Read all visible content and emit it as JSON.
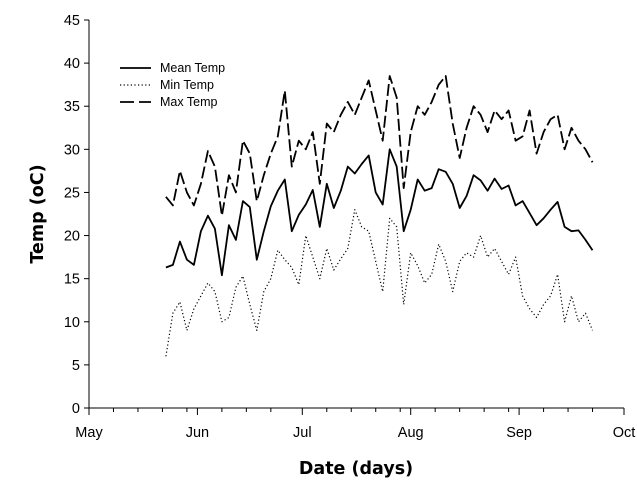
{
  "chart_data": {
    "type": "line",
    "xlabel": "Date (days)",
    "ylabel": "Temp (oC)",
    "xlim": [
      "2013-05-01",
      "2013-10-01"
    ],
    "x_ticks": [
      "May",
      "Jun",
      "Jul",
      "Aug",
      "Sep",
      "Oct"
    ],
    "ylim": [
      0,
      45
    ],
    "y_ticks": [
      0,
      5,
      10,
      15,
      20,
      25,
      30,
      35,
      40,
      45
    ],
    "grid": false,
    "legend_position": "top-left",
    "x": [
      "2013-05-23",
      "2013-05-25",
      "2013-05-27",
      "2013-05-29",
      "2013-05-31",
      "2013-06-02",
      "2013-06-04",
      "2013-06-06",
      "2013-06-08",
      "2013-06-10",
      "2013-06-12",
      "2013-06-14",
      "2013-06-16",
      "2013-06-18",
      "2013-06-20",
      "2013-06-22",
      "2013-06-24",
      "2013-06-26",
      "2013-06-28",
      "2013-06-30",
      "2013-07-02",
      "2013-07-04",
      "2013-07-06",
      "2013-07-08",
      "2013-07-10",
      "2013-07-12",
      "2013-07-14",
      "2013-07-16",
      "2013-07-18",
      "2013-07-20",
      "2013-07-22",
      "2013-07-24",
      "2013-07-26",
      "2013-07-28",
      "2013-07-30",
      "2013-08-01",
      "2013-08-03",
      "2013-08-05",
      "2013-08-07",
      "2013-08-09",
      "2013-08-11",
      "2013-08-13",
      "2013-08-15",
      "2013-08-17",
      "2013-08-19",
      "2013-08-21",
      "2013-08-23",
      "2013-08-25",
      "2013-08-27",
      "2013-08-29",
      "2013-08-31",
      "2013-09-02",
      "2013-09-04",
      "2013-09-06",
      "2013-09-08",
      "2013-09-10",
      "2013-09-12",
      "2013-09-14",
      "2013-09-16",
      "2013-09-18",
      "2013-09-20",
      "2013-09-22"
    ],
    "series": [
      {
        "name": "Mean Temp",
        "style": "solid",
        "values": [
          16.3,
          16.6,
          19.3,
          17.2,
          16.6,
          20.5,
          22.3,
          20.8,
          15.4,
          21.2,
          19.5,
          24.0,
          23.3,
          17.2,
          20.5,
          23.4,
          25.2,
          26.5,
          20.5,
          22.4,
          23.6,
          25.3,
          21.0,
          26.0,
          23.2,
          25.2,
          28.0,
          27.2,
          28.3,
          29.3,
          25.0,
          23.6,
          30.0,
          28.0,
          20.5,
          23.0,
          26.5,
          25.2,
          25.5,
          27.7,
          27.4,
          26.0,
          23.2,
          24.6,
          27.0,
          26.4,
          25.2,
          26.6,
          25.4,
          25.8,
          23.5,
          24.0,
          22.6,
          21.2,
          22.0,
          23.0,
          23.9,
          21.0,
          20.5,
          20.6,
          19.5,
          18.3
        ]
      },
      {
        "name": "Min Temp",
        "style": "dotted",
        "values": [
          6.0,
          11.0,
          12.3,
          9.0,
          11.5,
          13.0,
          14.5,
          13.5,
          10.0,
          10.5,
          14.0,
          15.3,
          12.0,
          9.0,
          13.5,
          15.0,
          18.3,
          17.2,
          16.3,
          14.3,
          20.0,
          17.5,
          15.0,
          18.5,
          16.0,
          17.3,
          18.5,
          23.0,
          21.0,
          20.5,
          17.0,
          13.5,
          22.0,
          21.0,
          12.0,
          18.0,
          16.5,
          14.5,
          15.5,
          19.0,
          17.0,
          13.5,
          17.0,
          18.0,
          17.5,
          20.0,
          17.5,
          18.5,
          17.0,
          15.5,
          17.5,
          13.0,
          11.5,
          10.5,
          12.0,
          13.0,
          15.5,
          10.0,
          13.0,
          10.0,
          11.0,
          9.0
        ]
      },
      {
        "name": "Max Temp",
        "style": "long-dash",
        "values": [
          24.5,
          23.5,
          27.5,
          25.0,
          23.5,
          26.0,
          29.8,
          28.0,
          22.3,
          27.0,
          25.0,
          31.0,
          29.5,
          24.0,
          27.0,
          29.5,
          31.5,
          36.8,
          28.0,
          31.0,
          30.0,
          32.0,
          26.0,
          33.0,
          32.0,
          34.0,
          35.5,
          34.0,
          36.0,
          38.0,
          34.5,
          31.0,
          38.5,
          36.0,
          25.5,
          32.0,
          35.0,
          34.0,
          35.5,
          37.5,
          38.5,
          33.0,
          29.0,
          32.5,
          35.0,
          34.0,
          32.0,
          34.5,
          33.5,
          34.5,
          31.0,
          31.5,
          34.5,
          29.5,
          32.0,
          33.5,
          34.0,
          30.0,
          32.5,
          31.0,
          30.0,
          28.5
        ]
      }
    ]
  }
}
